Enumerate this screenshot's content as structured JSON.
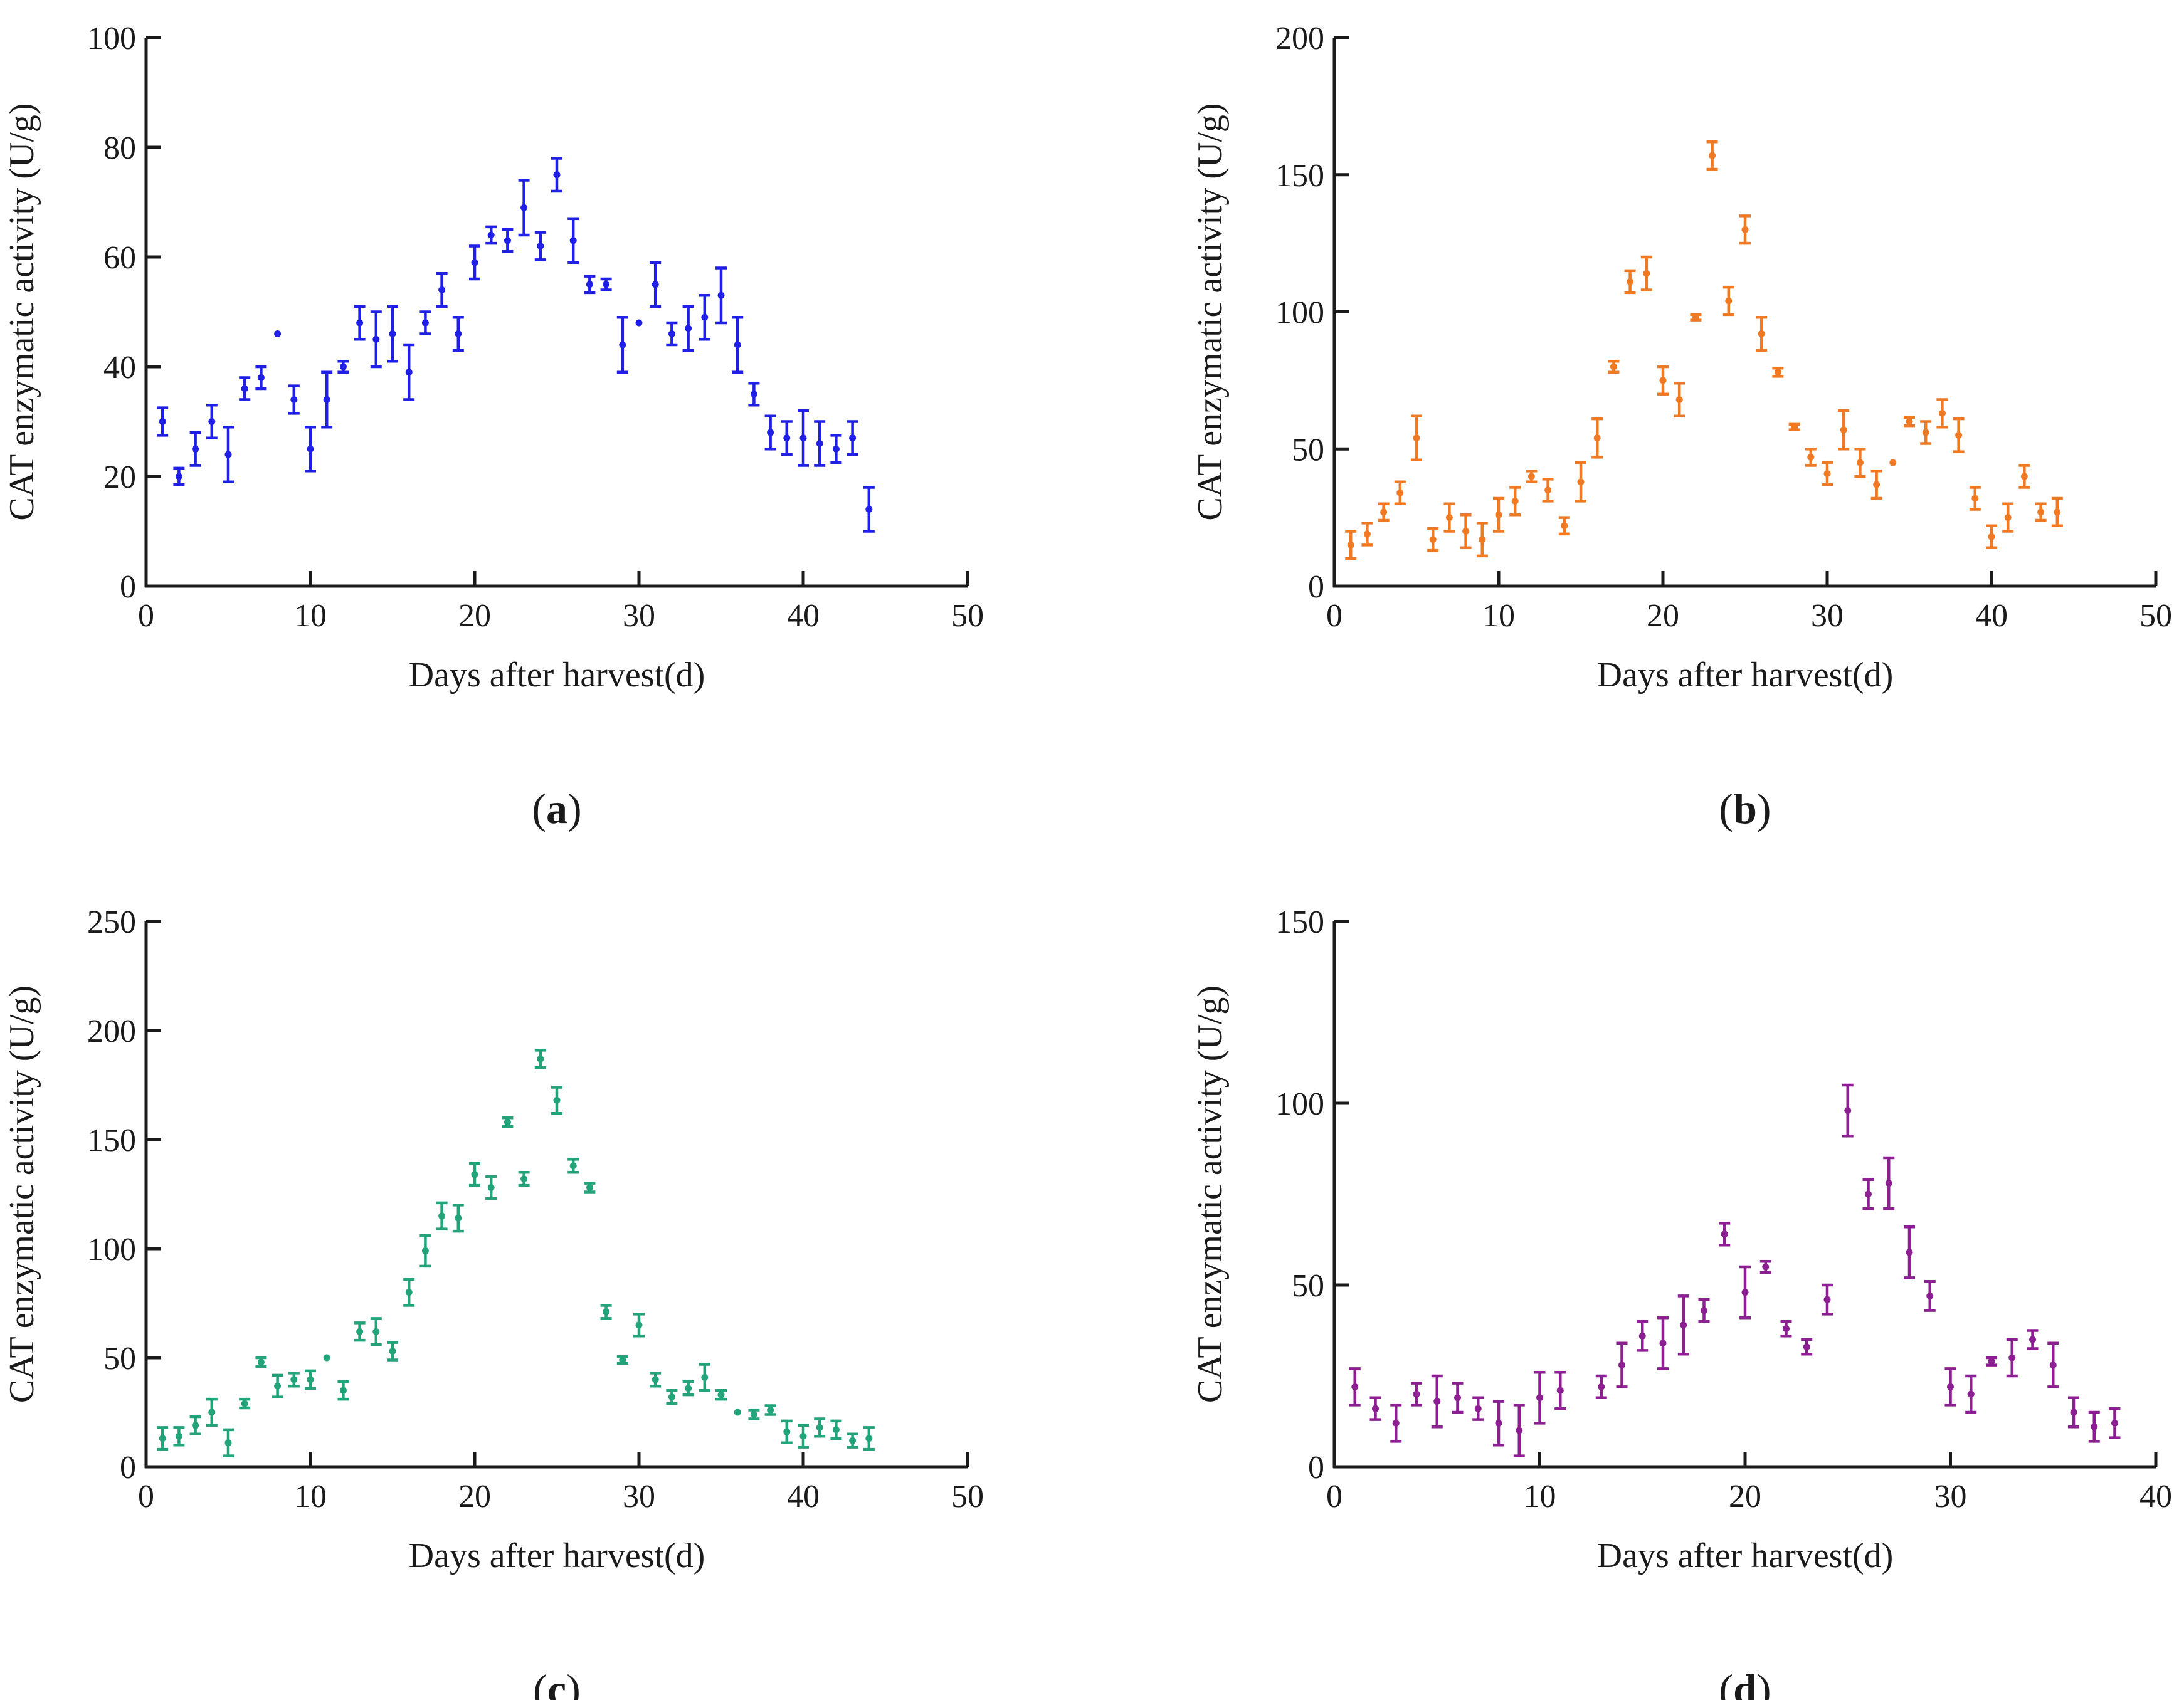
{
  "chart_data": [
    {
      "type": "scatter",
      "panel": "(a)",
      "panel_letter": "a",
      "color": "#1f1fe6",
      "xlabel": "Days after harvest(d)",
      "ylabel": "CAT enzymatic activity (U/g)",
      "xlim": [
        0,
        50
      ],
      "ylim": [
        0,
        100
      ],
      "xticks": [
        "0",
        "10",
        "20",
        "30",
        "40",
        "50"
      ],
      "yticks": [
        "0",
        "20",
        "40",
        "60",
        "80",
        "100"
      ],
      "series": [
        {
          "name": "CAT activity",
          "x": [
            1,
            2,
            3,
            4,
            5,
            6,
            7,
            8,
            9,
            10,
            11,
            12,
            13,
            14,
            15,
            16,
            17,
            18,
            19,
            20,
            21,
            22,
            23,
            24,
            25,
            26,
            27,
            28,
            29,
            30,
            31,
            32,
            33,
            34,
            35,
            36,
            37,
            38,
            39,
            40,
            41,
            42,
            43,
            44
          ],
          "y": [
            30,
            20,
            25,
            30,
            24,
            36,
            38,
            46,
            34,
            25,
            34,
            40,
            48,
            45,
            46,
            39,
            48,
            54,
            46,
            59,
            64,
            63,
            69,
            62,
            75,
            63,
            55,
            55,
            44,
            48,
            55,
            46,
            47,
            49,
            53,
            44,
            35,
            28,
            27,
            27,
            26,
            25,
            27,
            14
          ],
          "err": [
            2.5,
            1.5,
            3,
            3,
            5,
            2,
            2,
            0,
            2.5,
            4,
            5,
            1,
            3,
            5,
            5,
            5,
            2,
            3,
            3,
            3,
            1.5,
            2,
            5,
            2.5,
            3,
            4,
            1.5,
            1,
            5,
            0,
            4,
            2,
            4,
            4,
            5,
            5,
            2,
            3,
            3,
            5,
            4,
            2.5,
            3,
            4
          ]
        }
      ]
    },
    {
      "type": "scatter",
      "panel": "(b)",
      "panel_letter": "b",
      "color": "#f07a24",
      "xlabel": "Days after harvest(d)",
      "ylabel": "CAT enzymatic activity (U/g)",
      "xlim": [
        0,
        50
      ],
      "ylim": [
        0,
        200
      ],
      "xticks": [
        "0",
        "10",
        "20",
        "30",
        "40",
        "50"
      ],
      "yticks": [
        "0",
        "50",
        "100",
        "150",
        "200"
      ],
      "series": [
        {
          "name": "CAT activity",
          "x": [
            1,
            2,
            3,
            4,
            5,
            6,
            7,
            8,
            9,
            10,
            11,
            12,
            13,
            14,
            15,
            16,
            17,
            18,
            19,
            20,
            21,
            22,
            23,
            24,
            25,
            26,
            27,
            28,
            29,
            30,
            31,
            32,
            33,
            34,
            35,
            36,
            37,
            38,
            39,
            40,
            41,
            42,
            43,
            44
          ],
          "y": [
            15,
            19,
            27,
            34,
            54,
            17,
            25,
            20,
            17,
            26,
            31,
            40,
            35,
            22,
            38,
            54,
            80,
            111,
            114,
            75,
            68,
            98,
            157,
            104,
            130,
            92,
            78,
            58,
            47,
            41,
            57,
            45,
            37,
            45,
            60,
            56,
            63,
            55,
            32,
            18,
            25,
            40,
            27,
            27
          ],
          "err": [
            5,
            4,
            3,
            4,
            8,
            4,
            5,
            6,
            6,
            6,
            5,
            2,
            4,
            3,
            7,
            7,
            2,
            4,
            6,
            5,
            6,
            1,
            5,
            5,
            5,
            6,
            1.5,
            1,
            3,
            4,
            7,
            5,
            5,
            0,
            1.5,
            4,
            5,
            6,
            4,
            4,
            5,
            4,
            3,
            5
          ]
        }
      ]
    },
    {
      "type": "scatter",
      "panel": "(c)",
      "panel_letter": "c",
      "color": "#23a37a",
      "xlabel": "Days after harvest(d)",
      "ylabel": "CAT enzymatic activity (U/g)",
      "xlim": [
        0,
        50
      ],
      "ylim": [
        0,
        250
      ],
      "xticks": [
        "0",
        "10",
        "20",
        "30",
        "40",
        "50"
      ],
      "yticks": [
        "0",
        "50",
        "100",
        "150",
        "200",
        "250"
      ],
      "series": [
        {
          "name": "CAT activity",
          "x": [
            1,
            2,
            3,
            4,
            5,
            6,
            7,
            8,
            9,
            10,
            11,
            12,
            13,
            14,
            15,
            16,
            17,
            18,
            19,
            20,
            21,
            22,
            23,
            24,
            25,
            26,
            27,
            28,
            29,
            30,
            31,
            32,
            33,
            34,
            35,
            36,
            37,
            38,
            39,
            40,
            41,
            42,
            43,
            44
          ],
          "y": [
            13,
            14,
            19,
            25,
            11,
            29,
            48,
            37,
            40,
            40,
            50,
            35,
            62,
            62,
            53,
            80,
            99,
            115,
            114,
            134,
            128,
            158,
            132,
            187,
            168,
            138,
            128,
            71,
            49,
            65,
            40,
            32,
            36,
            41,
            33,
            25,
            24,
            26,
            16,
            14,
            18,
            17,
            12,
            13
          ],
          "err": [
            5,
            4,
            4,
            6,
            6,
            2,
            2,
            5,
            3,
            4,
            0,
            4,
            4,
            6,
            4,
            6,
            7,
            6,
            6,
            5,
            5,
            2,
            3,
            4,
            6,
            3,
            2,
            3,
            1.5,
            5,
            3,
            3,
            3,
            6,
            2,
            0,
            2,
            2,
            5,
            5,
            4,
            4,
            3,
            5
          ]
        }
      ]
    },
    {
      "type": "scatter",
      "panel": "(d)",
      "panel_letter": "d",
      "color": "#8c1f91",
      "xlabel": "Days after harvest(d)",
      "ylabel": "CAT enzymatic activity (U/g)",
      "xlim": [
        0,
        40
      ],
      "ylim": [
        0,
        150
      ],
      "xticks": [
        "0",
        "10",
        "20",
        "30",
        "40"
      ],
      "yticks": [
        "0",
        "50",
        "100",
        "150"
      ],
      "series": [
        {
          "name": "CAT activity",
          "x": [
            1,
            2,
            3,
            4,
            5,
            6,
            7,
            8,
            9,
            10,
            11,
            13,
            14,
            15,
            16,
            17,
            18,
            19,
            20,
            21,
            22,
            23,
            24,
            25,
            26,
            27,
            28,
            29,
            30,
            31,
            32,
            33,
            34,
            35,
            36,
            37,
            38
          ],
          "y": [
            22,
            16,
            12,
            20,
            18,
            19,
            16,
            12,
            10,
            19,
            21,
            22,
            28,
            36,
            34,
            39,
            43,
            64,
            48,
            55,
            38,
            33,
            46,
            98,
            75,
            78,
            59,
            47,
            22,
            20,
            29,
            30,
            35,
            28,
            15,
            11,
            12
          ],
          "err": [
            5,
            3,
            5,
            3,
            7,
            4,
            3,
            6,
            7,
            7,
            5,
            3,
            6,
            4,
            7,
            8,
            3,
            3,
            7,
            1.5,
            2,
            2,
            4,
            7,
            4,
            7,
            7,
            4,
            5,
            5,
            1,
            5,
            2.5,
            6,
            4,
            4,
            4
          ]
        }
      ]
    }
  ]
}
